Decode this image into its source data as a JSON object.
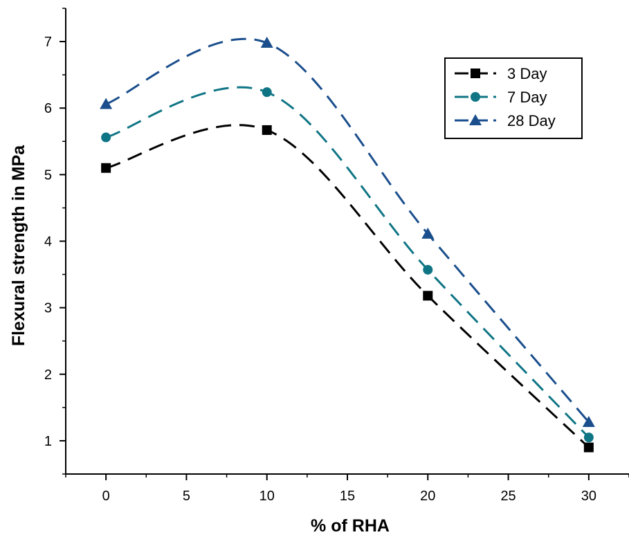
{
  "chart_data": {
    "type": "line",
    "title": "",
    "xlabel": "% of RHA",
    "ylabel": "Flexural strength in MPa",
    "xlim": [
      -2.5,
      32.5
    ],
    "ylim": [
      0.5,
      7.5
    ],
    "x_ticks": [
      0,
      5,
      10,
      15,
      20,
      25,
      30
    ],
    "y_ticks": [
      1,
      2,
      3,
      4,
      5,
      6,
      7
    ],
    "x_tick_labels": [
      "0",
      "5",
      "10",
      "15",
      "20",
      "25",
      "30"
    ],
    "y_tick_labels": [
      "1",
      "2",
      "3",
      "4",
      "5",
      "6",
      "7"
    ],
    "x": [
      0,
      10,
      20,
      30
    ],
    "grid": false,
    "legend_position": "top-right",
    "line_style": "dashed smooth curve",
    "series": [
      {
        "name": "3 Day",
        "values": [
          5.1,
          5.67,
          3.18,
          0.9
        ],
        "color": "#000000",
        "marker": "square"
      },
      {
        "name": "7 Day",
        "values": [
          5.56,
          6.24,
          3.57,
          1.05
        ],
        "color": "#0f7585",
        "marker": "circle"
      },
      {
        "name": "28 Day",
        "values": [
          6.06,
          6.98,
          4.11,
          1.28
        ],
        "color": "#1a4e8c",
        "marker": "triangle"
      }
    ]
  }
}
